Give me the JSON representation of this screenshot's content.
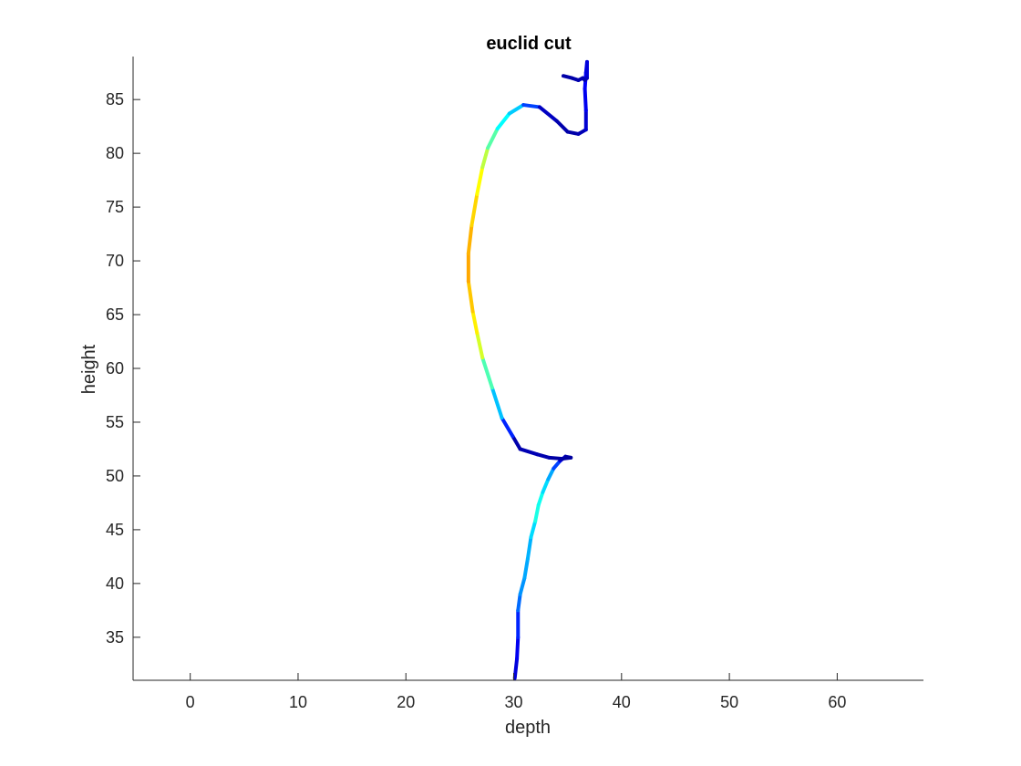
{
  "chart_data": {
    "type": "line",
    "title": "euclid cut",
    "xlabel": "depth",
    "ylabel": "height",
    "xlim": [
      -5.3,
      68
    ],
    "ylim": [
      31,
      89
    ],
    "xticks": [
      0,
      10,
      20,
      30,
      40,
      50,
      60
    ],
    "yticks": [
      35,
      40,
      45,
      50,
      55,
      60,
      65,
      70,
      75,
      80,
      85
    ],
    "grid": false,
    "box": false,
    "colormap": "jet",
    "series": [
      {
        "x": [
          30.1,
          30.3,
          30.4,
          30.4,
          30.6,
          31.0,
          31.3,
          31.6,
          32.0,
          32.3,
          32.7,
          33.2,
          33.7,
          34.3,
          34.8,
          35.3,
          34.5,
          33.3,
          32.2,
          30.6,
          29.9,
          28.9,
          28.0,
          27.1,
          26.6,
          26.2,
          25.8,
          25.8,
          26.1,
          26.6,
          27.1,
          27.6,
          28.5,
          29.6,
          30.9,
          32.4,
          34.0,
          35.0,
          36.0,
          36.7,
          36.7,
          36.6,
          36.7,
          36.8,
          36.8,
          36.6,
          36.4,
          36.0,
          35.4,
          34.6
        ],
        "y": [
          31.2,
          33.0,
          35.0,
          37.5,
          39.0,
          40.5,
          42.3,
          44.3,
          45.8,
          47.3,
          48.5,
          49.7,
          50.7,
          51.4,
          51.8,
          51.7,
          51.6,
          51.7,
          52.0,
          52.5,
          53.7,
          55.4,
          58.2,
          61.0,
          63.3,
          65.3,
          68.1,
          70.7,
          73.3,
          76.2,
          78.7,
          80.5,
          82.3,
          83.7,
          84.5,
          84.3,
          83.0,
          82.0,
          81.8,
          82.2,
          84.0,
          86.0,
          87.5,
          88.5,
          87.0,
          86.8,
          87.0,
          86.8,
          87.0,
          87.2
        ],
        "c": [
          0.08,
          0.1,
          0.12,
          0.2,
          0.26,
          0.28,
          0.3,
          0.3,
          0.38,
          0.42,
          0.36,
          0.32,
          0.26,
          0.12,
          0.06,
          0.03,
          0.03,
          0.04,
          0.05,
          0.05,
          0.04,
          0.28,
          0.35,
          0.55,
          0.62,
          0.66,
          0.7,
          0.72,
          0.68,
          0.65,
          0.6,
          0.52,
          0.4,
          0.35,
          0.3,
          0.08,
          0.05,
          0.04,
          0.04,
          0.06,
          0.1,
          0.12,
          0.12,
          0.1,
          0.08,
          0.05,
          0.05,
          0.05,
          0.04,
          0.04
        ]
      }
    ]
  }
}
